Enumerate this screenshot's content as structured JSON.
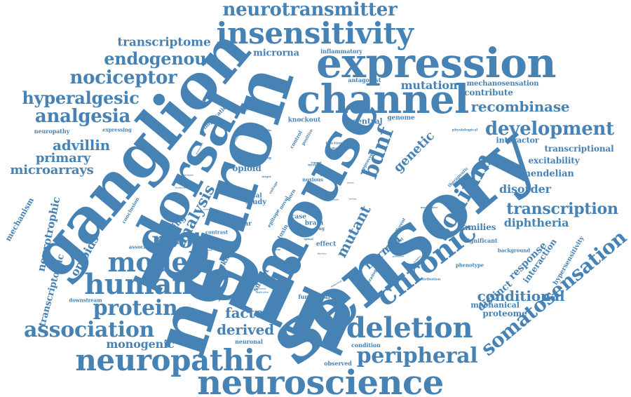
{
  "cloud": {
    "color": "#4682b4",
    "words": [
      {
        "text": "pain",
        "weight": 1.0
      },
      {
        "text": "neuron",
        "weight": 0.92
      },
      {
        "text": "sensory",
        "weight": 0.88
      },
      {
        "text": "mouse",
        "weight": 0.8
      },
      {
        "text": "ganglion",
        "weight": 0.74
      },
      {
        "text": "dorsal",
        "weight": 0.64
      },
      {
        "text": "expression",
        "weight": 0.58
      },
      {
        "text": "channel",
        "weight": 0.56
      },
      {
        "text": "neuroscience",
        "weight": 0.52
      },
      {
        "text": "insensitivity",
        "weight": 0.48
      },
      {
        "text": "neuropathic",
        "weight": 0.46
      },
      {
        "text": "deletion",
        "weight": 0.45
      },
      {
        "text": "chronic",
        "weight": 0.44
      },
      {
        "text": "human",
        "weight": 0.44
      },
      {
        "text": "model",
        "weight": 0.42
      },
      {
        "text": "sodium",
        "weight": 0.42
      },
      {
        "text": "somatosensation",
        "weight": 0.36
      },
      {
        "text": "association",
        "weight": 0.36
      },
      {
        "text": "protein",
        "weight": 0.36
      },
      {
        "text": "root",
        "weight": 0.36
      },
      {
        "text": "peripheral",
        "weight": 0.36
      },
      {
        "text": "development",
        "weight": 0.34
      },
      {
        "text": "neurotransmitter",
        "weight": 0.3
      },
      {
        "text": "analgesia",
        "weight": 0.3
      },
      {
        "text": "nociceptor",
        "weight": 0.3
      },
      {
        "text": "endogenous",
        "weight": 0.28
      },
      {
        "text": "hyperalgesic",
        "weight": 0.28
      },
      {
        "text": "bdnf",
        "weight": 0.3
      },
      {
        "text": "transcription",
        "weight": 0.24
      },
      {
        "text": "recombinase",
        "weight": 0.22
      },
      {
        "text": "analysis",
        "weight": 0.24
      },
      {
        "text": "conditional",
        "weight": 0.22
      },
      {
        "text": "factor",
        "weight": 0.22
      },
      {
        "text": "derived",
        "weight": 0.22
      },
      {
        "text": "mutant",
        "weight": 0.22
      },
      {
        "text": "advillin",
        "weight": 0.2
      },
      {
        "text": "microarrays",
        "weight": 0.2
      },
      {
        "text": "primary",
        "weight": 0.2
      },
      {
        "text": "transcriptome",
        "weight": 0.2
      },
      {
        "text": "mutation",
        "weight": 0.18
      },
      {
        "text": "genetic",
        "weight": 0.2
      },
      {
        "text": "disorder",
        "weight": 0.18
      },
      {
        "text": "diphtheria",
        "weight": 0.18
      },
      {
        "text": "normal",
        "weight": 0.18
      },
      {
        "text": "opioids",
        "weight": 0.18
      },
      {
        "text": "monogenic",
        "weight": 0.16
      },
      {
        "text": "neurotrophic",
        "weight": 0.16
      },
      {
        "text": "distinct",
        "weight": 0.16
      },
      {
        "text": "response",
        "weight": 0.16
      },
      {
        "text": "mendelian",
        "weight": 0.14
      },
      {
        "text": "excitability",
        "weight": 0.14
      },
      {
        "text": "interaction",
        "weight": 0.14
      },
      {
        "text": "transcriptional",
        "weight": 0.13
      },
      {
        "text": "families",
        "weight": 0.13
      },
      {
        "text": "proteome",
        "weight": 0.12
      },
      {
        "text": "mechanical",
        "weight": 0.11
      },
      {
        "text": "transcriptomic",
        "weight": 0.13
      },
      {
        "text": "microrna",
        "weight": 0.13
      },
      {
        "text": "contribute",
        "weight": 0.12
      },
      {
        "text": "central",
        "weight": 0.11
      },
      {
        "text": "priming",
        "weight": 0.12
      },
      {
        "text": "opioid",
        "weight": 0.12
      },
      {
        "text": "mechanism",
        "weight": 0.11
      },
      {
        "text": "specific",
        "weight": 0.11
      },
      {
        "text": "interactor",
        "weight": 0.11
      },
      {
        "text": "mechanosensation",
        "weight": 0.1
      },
      {
        "text": "hypersensitivity",
        "weight": 0.09
      },
      {
        "text": "lacking",
        "weight": 0.1
      },
      {
        "text": "subset",
        "weight": 0.1
      },
      {
        "text": "study",
        "weight": 0.1
      },
      {
        "text": "knockout",
        "weight": 0.09
      },
      {
        "text": "genome",
        "weight": 0.09
      },
      {
        "text": "case",
        "weight": 0.09
      },
      {
        "text": "brain",
        "weight": 0.09
      },
      {
        "text": "effect",
        "weight": 0.09
      },
      {
        "text": "critical",
        "weight": 0.09
      },
      {
        "text": "nuclear",
        "weight": 0.09
      },
      {
        "text": "neuronal",
        "weight": 0.08
      },
      {
        "text": "condition",
        "weight": 0.08
      },
      {
        "text": "observed",
        "weight": 0.08
      },
      {
        "text": "functional",
        "weight": 0.08
      },
      {
        "text": "inflammatory",
        "weight": 0.08
      },
      {
        "text": "neuropathy",
        "weight": 0.08
      },
      {
        "text": "significant",
        "weight": 0.08
      },
      {
        "text": "background",
        "weight": 0.08
      },
      {
        "text": "phenotype",
        "weight": 0.07
      },
      {
        "text": "antagonist",
        "weight": 0.08
      },
      {
        "text": "implication",
        "weight": 0.08
      },
      {
        "text": "expressing",
        "weight": 0.07
      },
      {
        "text": "associated",
        "weight": 0.07
      },
      {
        "text": "downstream",
        "weight": 0.07
      },
      {
        "text": "independent",
        "weight": 0.06
      },
      {
        "text": "ablation",
        "weight": 0.07
      },
      {
        "text": "contrast",
        "weight": 0.07
      },
      {
        "text": "conclusion",
        "weight": 0.07
      },
      {
        "text": "toxin",
        "weight": 0.08
      },
      {
        "text": "targeted",
        "weight": 0.06
      },
      {
        "text": "noxious",
        "weight": 0.07
      },
      {
        "text": "epitope",
        "weight": 0.07
      },
      {
        "text": "novel",
        "weight": 0.07
      },
      {
        "text": "born",
        "weight": 0.07
      },
      {
        "text": "control",
        "weight": 0.07
      },
      {
        "text": "positive",
        "weight": 0.06
      },
      {
        "text": "therapeutic",
        "weight": 0.06
      },
      {
        "text": "tamoxifen",
        "weight": 0.06
      },
      {
        "text": "transgenic",
        "weight": 0.06
      },
      {
        "text": "afferent",
        "weight": 0.06
      },
      {
        "text": "treatment",
        "weight": 0.06
      },
      {
        "text": "contribution",
        "weight": 0.05
      },
      {
        "text": "approved",
        "weight": 0.06
      },
      {
        "text": "drug",
        "weight": 0.06
      },
      {
        "text": "selecting",
        "weight": 0.05
      },
      {
        "text": "profiling",
        "weight": 0.05
      },
      {
        "text": "nervous",
        "weight": 0.05
      },
      {
        "text": "function",
        "weight": 0.05
      },
      {
        "text": "mapping",
        "weight": 0.05
      },
      {
        "text": "physiological",
        "weight": 0.05
      },
      {
        "text": "nocifensive",
        "weight": 0.04
      },
      {
        "text": "voltage",
        "weight": 0.05
      },
      {
        "text": "endophilin",
        "weight": 0.04
      },
      {
        "text": "transition",
        "weight": 0.04
      },
      {
        "text": "tagged",
        "weight": 0.04
      },
      {
        "text": "target",
        "weight": 0.04
      },
      {
        "text": "spinal",
        "weight": 0.04
      },
      {
        "text": "nerve",
        "weight": 0.04
      },
      {
        "text": "phase",
        "weight": 0.04
      },
      {
        "text": "presence",
        "weight": 0.03
      },
      {
        "text": "application",
        "weight": 0.03
      },
      {
        "text": "difference",
        "weight": 0.03
      },
      {
        "text": "version",
        "weight": 0.03
      },
      {
        "text": "evidence",
        "weight": 0.03
      },
      {
        "text": "limb",
        "weight": 0.03
      },
      {
        "text": "provocative",
        "weight": 0.03
      },
      {
        "text": "behavioral",
        "weight": 0.03
      },
      {
        "text": "blocker",
        "weight": 0.03
      },
      {
        "text": "laevis",
        "weight": 0.03
      },
      {
        "text": "result",
        "weight": 0.03
      },
      {
        "text": "review",
        "weight": 0.03
      },
      {
        "text": "suffering",
        "weight": 0.03
      },
      {
        "text": "malonate",
        "weight": 0.03
      },
      {
        "text": "headache",
        "weight": 0.03
      },
      {
        "text": "complex",
        "weight": 0.03
      },
      {
        "text": "protective",
        "weight": 0.03
      },
      {
        "text": "scientific",
        "weight": 0.03
      }
    ]
  }
}
